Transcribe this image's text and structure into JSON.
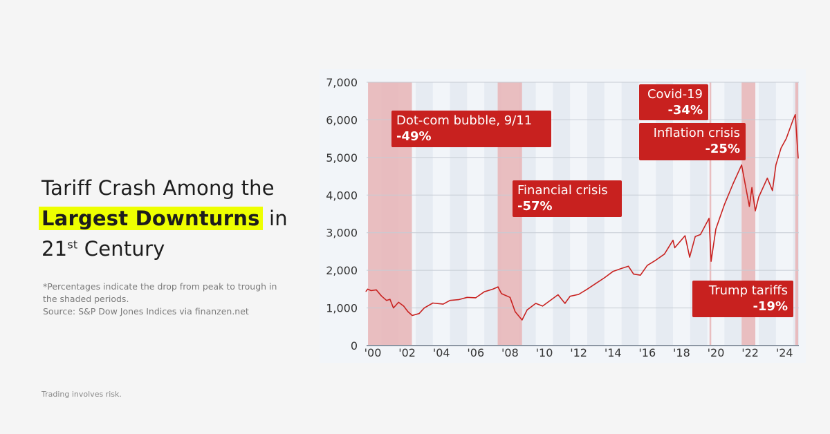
{
  "headline": {
    "part1": "Tariff Crash Among the",
    "highlight": "Largest Downturns",
    "part2": "in",
    "line3_number": "21",
    "line3_sup": "st",
    "line3_rest": "Century"
  },
  "note": {
    "line1": "*Percentages indicate the drop from peak to trough in the shaded periods.",
    "source": "Source: S&P Dow Jones Indices via finanzen.net"
  },
  "footer": "Trading involves risk.",
  "colors": {
    "line": "#c8211f",
    "shade": "#e8b4b6",
    "annotation": "#c8211f",
    "highlight": "#eeff00"
  },
  "chart_data": {
    "type": "line",
    "title": "",
    "xlabel": "",
    "ylabel": "",
    "ylim": [
      0,
      7000
    ],
    "xlim": [
      2000.1,
      2025.35
    ],
    "grid": true,
    "yticks": [
      0,
      1000,
      2000,
      3000,
      4000,
      5000,
      6000,
      7000
    ],
    "ytick_labels": [
      "0",
      "1,000",
      "2,000",
      "3,000",
      "4,000",
      "5,000",
      "6,000",
      "7,000"
    ],
    "xticks": [
      2000,
      2002,
      2004,
      2006,
      2008,
      2010,
      2012,
      2014,
      2016,
      2018,
      2020,
      2022,
      2024
    ],
    "xtick_labels": [
      "'00",
      "'02",
      "'04",
      "'06",
      "'08",
      "'10",
      "'12",
      "'14",
      "'16",
      "'18",
      "'20",
      "'22",
      "'24"
    ],
    "series": [
      {
        "x": [
          2000.1,
          2000.2,
          2000.4,
          2000.7,
          2001.0,
          2001.3,
          2001.5,
          2001.7,
          2002.0,
          2002.3,
          2002.55,
          2002.8,
          2003.2,
          2003.5,
          2004.0,
          2004.6,
          2005.0,
          2005.5,
          2006.0,
          2006.5,
          2007.0,
          2007.5,
          2007.8,
          2008.0,
          2008.5,
          2008.8,
          2009.2,
          2009.5,
          2010.0,
          2010.4,
          2011.3,
          2011.7,
          2012.0,
          2012.5,
          2013.0,
          2013.5,
          2014.0,
          2014.5,
          2015.0,
          2015.4,
          2015.7,
          2016.1,
          2016.5,
          2017.0,
          2017.5,
          2018.0,
          2018.1,
          2018.7,
          2018.97,
          2019.3,
          2019.6,
          2020.1,
          2020.22,
          2020.5,
          2021.0,
          2021.5,
          2022.0,
          2022.45,
          2022.6,
          2022.8,
          2023.0,
          2023.5,
          2023.8,
          2024.0,
          2024.3,
          2024.6,
          2025.0,
          2025.13,
          2025.3
        ],
        "y": [
          1440,
          1500,
          1460,
          1480,
          1320,
          1200,
          1230,
          1000,
          1150,
          1050,
          900,
          800,
          850,
          1000,
          1130,
          1100,
          1200,
          1220,
          1280,
          1270,
          1430,
          1500,
          1560,
          1380,
          1280,
          900,
          680,
          950,
          1120,
          1050,
          1350,
          1120,
          1310,
          1360,
          1500,
          1650,
          1800,
          1970,
          2050,
          2110,
          1900,
          1870,
          2130,
          2270,
          2430,
          2800,
          2600,
          2920,
          2350,
          2900,
          2950,
          3380,
          2240,
          3100,
          3750,
          4300,
          4800,
          3700,
          4200,
          3580,
          3950,
          4450,
          4120,
          4800,
          5250,
          5500,
          6000,
          6140,
          4980
        ]
      }
    ],
    "shaded_periods": [
      {
        "start": 2000.22,
        "end": 2002.78,
        "label": "Dot-com bubble, 9/11",
        "value": "-49%"
      },
      {
        "start": 2007.78,
        "end": 2009.2,
        "label": "Financial crisis",
        "value": "-57%"
      },
      {
        "start": 2020.13,
        "end": 2020.23,
        "label": "Covid-19",
        "value": "-34%"
      },
      {
        "start": 2022.0,
        "end": 2022.8,
        "label": "Inflation crisis",
        "value": "-25%"
      },
      {
        "start": 2025.13,
        "end": 2025.3,
        "label": "Trump tariffs",
        "value": "-19%"
      }
    ]
  }
}
